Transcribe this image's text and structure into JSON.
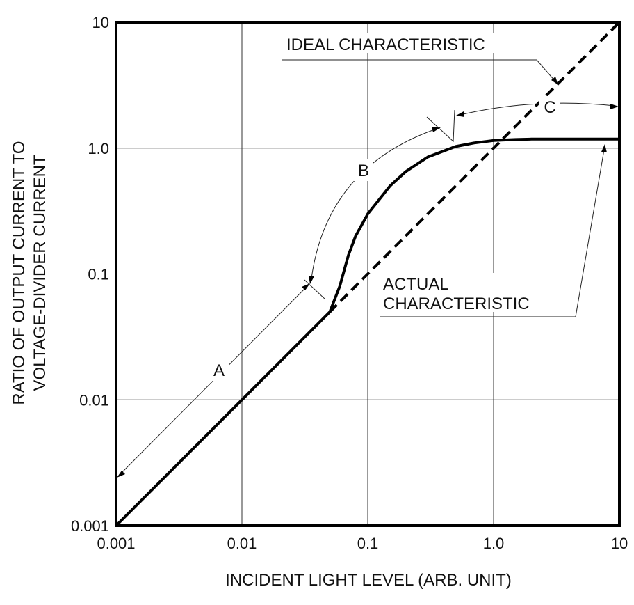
{
  "chart_data": {
    "type": "line",
    "title": "",
    "xlabel": "INCIDENT LIGHT LEVEL (ARB. UNIT)",
    "ylabel_lines": [
      "RATIO OF OUTPUT CURRENT TO",
      "VOLTAGE-DIVIDER CURRENT"
    ],
    "x_scale": "log",
    "y_scale": "log",
    "xlim": [
      0.001,
      10
    ],
    "ylim": [
      0.001,
      10
    ],
    "grid": true,
    "x_ticks": [
      "0.001",
      "0.01",
      "0.1",
      "1.0",
      "10"
    ],
    "y_ticks": [
      "0.001",
      "0.01",
      "0.1",
      "1.0",
      "10"
    ],
    "series": [
      {
        "name": "IDEAL CHARACTERISTIC",
        "style": "dashed",
        "x": [
          0.05,
          10
        ],
        "y": [
          0.05,
          10
        ]
      },
      {
        "name": "ACTUAL CHARACTERISTIC",
        "style": "solid",
        "x": [
          0.001,
          0.01,
          0.05,
          0.06,
          0.07,
          0.08,
          0.1,
          0.15,
          0.2,
          0.3,
          0.5,
          0.7,
          1.0,
          1.5,
          2,
          5,
          10
        ],
        "y": [
          0.001,
          0.01,
          0.05,
          0.08,
          0.14,
          0.2,
          0.3,
          0.5,
          0.65,
          0.85,
          1.03,
          1.1,
          1.15,
          1.17,
          1.18,
          1.18,
          1.18
        ]
      }
    ],
    "annotations": {
      "ideal_label": "IDEAL CHARACTERISTIC",
      "actual_label_lines": [
        "ACTUAL",
        "CHARACTERISTIC"
      ],
      "regions": [
        "A",
        "B",
        "C"
      ]
    }
  }
}
